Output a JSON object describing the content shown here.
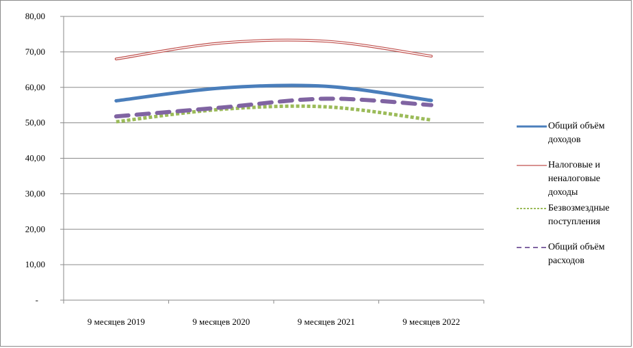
{
  "chart_data": {
    "type": "line",
    "categories": [
      "9 месяцев 2019",
      "9 месяцев 2020",
      "9 месяцев 2021",
      "9 месяцев 2022"
    ],
    "y_ticks": [
      "-",
      "10,00",
      "20,00",
      "30,00",
      "40,00",
      "50,00",
      "60,00",
      "70,00",
      "80,00"
    ],
    "ylim": [
      0,
      80
    ],
    "grid": true,
    "legend_position": "right",
    "series": [
      {
        "name": "Общий объём доходов",
        "values": [
          56.2,
          59.8,
          60.3,
          56.3
        ],
        "color": "#4a7ebb",
        "style": "solid-thick"
      },
      {
        "name": "Налоговые и неналоговые доходы",
        "values": [
          68.0,
          72.5,
          73.0,
          68.8
        ],
        "color": "#c0504d",
        "style": "double"
      },
      {
        "name": "Безвозмездные поступления",
        "values": [
          50.3,
          53.8,
          54.5,
          50.8
        ],
        "color": "#9bbb59",
        "style": "dotted"
      },
      {
        "name": "Общий объём расходов",
        "values": [
          51.8,
          54.3,
          56.8,
          55.0
        ],
        "color": "#8064a2",
        "style": "dashed"
      }
    ]
  }
}
